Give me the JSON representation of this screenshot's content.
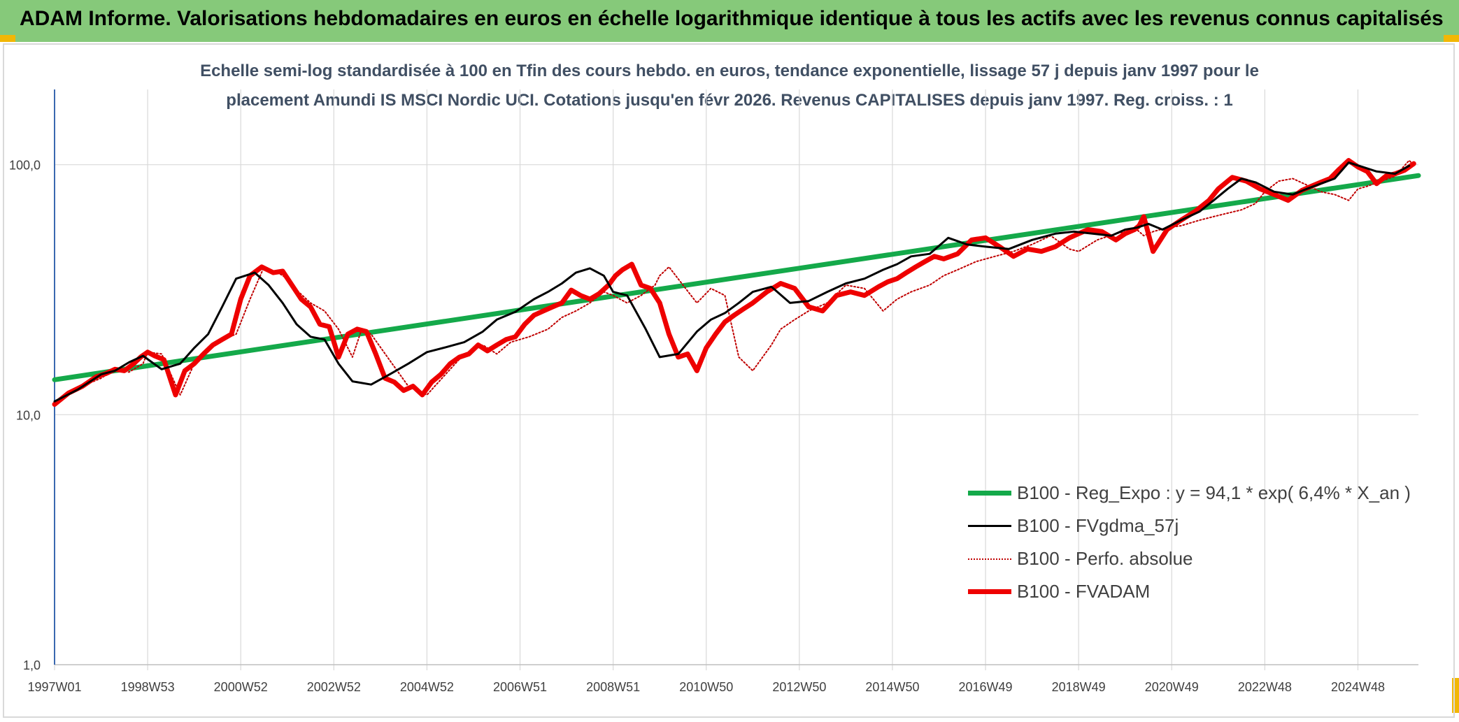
{
  "header": {
    "title": "ADAM Informe. Valorisations hebdomadaires en euros en échelle logarithmique identique à tous les actifs avec les revenus connus capitalisés"
  },
  "subtitle": {
    "line1": "Echelle semi-log standardisée à 100 en Tfin des cours hebdo. en euros, tendance exponentielle, lissage 57 j depuis janv 1997 pour le",
    "line2": "placement Amundi IS MSCI Nordic UCI. Cotations jusqu'en févr 2026. Revenus CAPITALISES depuis janv 1997. Reg. croiss. : 1"
  },
  "colors": {
    "header_bg": "#86c97a",
    "corner": "#f2b705",
    "reg": "#14a94a",
    "smooth": "#000000",
    "perfo": "#c00000",
    "fvadam": "#ee0000",
    "grid": "#d9d9d9",
    "axis": "#3a68b0"
  },
  "chart_data": {
    "type": "line",
    "yscale": "log",
    "ylim": [
      1,
      200
    ],
    "xlim": [
      1997.0,
      2026.3
    ],
    "y_ticks": [
      {
        "value": 1,
        "label": "1,0"
      },
      {
        "value": 10,
        "label": "10,0"
      },
      {
        "value": 100,
        "label": "100,0"
      }
    ],
    "x_ticks": [
      {
        "x": 1997.0,
        "label": "1997W01"
      },
      {
        "x": 1999.0,
        "label": "1998W53"
      },
      {
        "x": 2001.0,
        "label": "2000W52"
      },
      {
        "x": 2003.0,
        "label": "2002W52"
      },
      {
        "x": 2005.0,
        "label": "2004W52"
      },
      {
        "x": 2007.0,
        "label": "2006W51"
      },
      {
        "x": 2009.0,
        "label": "2008W51"
      },
      {
        "x": 2011.0,
        "label": "2010W50"
      },
      {
        "x": 2013.0,
        "label": "2012W50"
      },
      {
        "x": 2015.0,
        "label": "2014W50"
      },
      {
        "x": 2017.0,
        "label": "2016W49"
      },
      {
        "x": 2019.0,
        "label": "2018W49"
      },
      {
        "x": 2021.0,
        "label": "2020W49"
      },
      {
        "x": 2023.0,
        "label": "2022W48"
      },
      {
        "x": 2025.0,
        "label": "2024W48"
      }
    ],
    "grid": true,
    "legend_position": "bottom-right",
    "series": [
      {
        "name": "B100 - Reg_Expo : y = 94,1 * exp( 6,4% *  X_an )",
        "style": "line-thick",
        "color": "#14a94a",
        "x": [
          1997.0,
          2026.3
        ],
        "y": [
          13.8,
          90.5
        ]
      },
      {
        "name": "B100 - FVgdma_57j",
        "style": "line-thin",
        "color": "#000000",
        "x": [
          1997.0,
          1997.5,
          1998.0,
          1998.3,
          1998.6,
          1998.9,
          1999.3,
          1999.7,
          2000.0,
          2000.3,
          2000.6,
          2000.9,
          2001.3,
          2001.6,
          2001.9,
          2002.2,
          2002.5,
          2002.8,
          2003.1,
          2003.4,
          2003.8,
          2004.2,
          2004.6,
          2005.0,
          2005.4,
          2005.8,
          2006.2,
          2006.5,
          2006.9,
          2007.3,
          2007.6,
          2007.9,
          2008.2,
          2008.5,
          2008.8,
          2009.0,
          2009.3,
          2009.7,
          2010.0,
          2010.4,
          2010.8,
          2011.1,
          2011.4,
          2011.7,
          2012.0,
          2012.4,
          2012.8,
          2013.2,
          2013.6,
          2014.0,
          2014.4,
          2014.8,
          2015.1,
          2015.4,
          2015.8,
          2016.2,
          2016.6,
          2017.0,
          2017.5,
          2018.0,
          2018.5,
          2018.9,
          2019.3,
          2019.7,
          2020.0,
          2020.25,
          2020.5,
          2020.8,
          2021.2,
          2021.6,
          2021.9,
          2022.2,
          2022.5,
          2022.8,
          2023.2,
          2023.6,
          2023.9,
          2024.2,
          2024.5,
          2024.8,
          2025.1,
          2025.4,
          2025.8,
          2026.1
        ],
        "y": [
          11.3,
          12.6,
          14.5,
          15.0,
          16.2,
          17.2,
          15.2,
          16.0,
          18.5,
          21.0,
          27.0,
          35.0,
          37.0,
          33.0,
          28.0,
          23.0,
          20.5,
          20.0,
          16.0,
          13.6,
          13.2,
          14.5,
          16.0,
          17.8,
          18.6,
          19.5,
          21.5,
          24.0,
          25.8,
          29.0,
          31.0,
          33.5,
          37.0,
          38.5,
          36.0,
          31.0,
          30.0,
          22.0,
          17.0,
          17.5,
          21.5,
          24.0,
          25.5,
          28.0,
          31.0,
          32.5,
          28.0,
          28.5,
          31.0,
          33.5,
          35.0,
          38.0,
          40.0,
          43.0,
          44.0,
          51.0,
          48.0,
          47.0,
          46.0,
          50.0,
          53.0,
          54.0,
          53.0,
          52.0,
          55.0,
          56.0,
          58.0,
          55.0,
          60.0,
          65.0,
          72.0,
          80.0,
          88.0,
          85.0,
          78.0,
          76.0,
          80.0,
          84.0,
          88.0,
          102.0,
          98.0,
          94.0,
          92.0,
          99.0
        ]
      },
      {
        "name": "B100 - Perfo. absolue",
        "style": "dotted",
        "color": "#c00000",
        "x": [
          1997.0,
          1997.5,
          1998.0,
          1998.3,
          1998.6,
          1998.9,
          1999.0,
          1999.3,
          1999.7,
          2000.0,
          2000.3,
          2000.6,
          2000.9,
          2001.2,
          2001.5,
          2001.8,
          2002.0,
          2002.2,
          2002.5,
          2002.8,
          2003.1,
          2003.4,
          2003.6,
          2003.8,
          2004.2,
          2004.6,
          2005.0,
          2005.4,
          2005.8,
          2006.2,
          2006.5,
          2006.8,
          2007.2,
          2007.6,
          2007.9,
          2008.2,
          2008.5,
          2008.8,
          2009.0,
          2009.3,
          2009.6,
          2009.9,
          2010.0,
          2010.2,
          2010.5,
          2010.8,
          2011.1,
          2011.4,
          2011.7,
          2012.0,
          2012.4,
          2012.6,
          2012.9,
          2013.2,
          2013.6,
          2014.0,
          2014.4,
          2014.8,
          2015.1,
          2015.4,
          2015.8,
          2016.1,
          2016.4,
          2016.8,
          2017.2,
          2017.6,
          2018.0,
          2018.4,
          2018.8,
          2019.0,
          2019.4,
          2019.8,
          2020.0,
          2020.25,
          2020.4,
          2020.6,
          2020.9,
          2021.2,
          2021.6,
          2021.9,
          2022.2,
          2022.5,
          2022.8,
          2023.0,
          2023.3,
          2023.6,
          2023.9,
          2024.2,
          2024.5,
          2024.8,
          2025.0,
          2025.2,
          2025.5,
          2025.8,
          2026.1,
          2026.2
        ],
        "y": [
          11.0,
          12.8,
          14.0,
          15.2,
          14.8,
          16.0,
          17.8,
          17.5,
          12.0,
          16.0,
          18.5,
          20.0,
          21.0,
          29.0,
          39.0,
          37.0,
          35.0,
          31.5,
          28.0,
          26.0,
          22.0,
          17.0,
          22.0,
          21.0,
          16.5,
          13.0,
          12.0,
          14.5,
          17.5,
          19.0,
          17.5,
          19.5,
          20.5,
          22.0,
          24.5,
          26.0,
          28.0,
          31.0,
          30.0,
          28.0,
          30.0,
          33.0,
          36.0,
          39.0,
          33.0,
          28.0,
          32.0,
          30.0,
          17.0,
          15.0,
          19.0,
          22.0,
          24.0,
          26.0,
          28.0,
          33.0,
          32.0,
          26.0,
          29.0,
          31.0,
          33.0,
          36.0,
          38.0,
          41.0,
          43.0,
          45.0,
          48.0,
          52.0,
          46.0,
          45.0,
          50.0,
          53.0,
          54.0,
          55.0,
          52.0,
          54.0,
          56.0,
          57.0,
          60.0,
          62.0,
          64.0,
          66.0,
          70.0,
          78.0,
          86.0,
          88.0,
          83.0,
          78.0,
          76.0,
          72.0,
          80.0,
          82.0,
          86.0,
          90.0,
          104.0,
          100.0
        ]
      },
      {
        "name": "B100 - FVADAM",
        "style": "line-thick",
        "color": "#ee0000",
        "x": [
          1997.0,
          1997.3,
          1997.6,
          1997.9,
          1998.1,
          1998.3,
          1998.5,
          1998.7,
          1998.85,
          1999.0,
          1999.15,
          1999.35,
          1999.6,
          1999.8,
          2000.0,
          2000.2,
          2000.4,
          2000.6,
          2000.8,
          2001.0,
          2001.2,
          2001.45,
          2001.7,
          2001.9,
          2002.1,
          2002.3,
          2002.5,
          2002.7,
          2002.9,
          2003.1,
          2003.3,
          2003.5,
          2003.7,
          2003.9,
          2004.1,
          2004.3,
          2004.5,
          2004.7,
          2004.9,
          2005.1,
          2005.3,
          2005.5,
          2005.7,
          2005.9,
          2006.1,
          2006.3,
          2006.5,
          2006.7,
          2006.9,
          2007.1,
          2007.3,
          2007.5,
          2007.7,
          2007.9,
          2008.1,
          2008.3,
          2008.5,
          2008.7,
          2008.9,
          2009.05,
          2009.2,
          2009.4,
          2009.6,
          2009.8,
          2010.0,
          2010.2,
          2010.4,
          2010.6,
          2010.8,
          2011.0,
          2011.2,
          2011.4,
          2011.6,
          2011.8,
          2012.0,
          2012.3,
          2012.6,
          2012.9,
          2013.2,
          2013.5,
          2013.8,
          2014.1,
          2014.4,
          2014.7,
          2014.9,
          2015.1,
          2015.3,
          2015.5,
          2015.7,
          2015.9,
          2016.1,
          2016.4,
          2016.7,
          2017.0,
          2017.3,
          2017.6,
          2017.9,
          2018.2,
          2018.5,
          2018.8,
          2019.0,
          2019.2,
          2019.5,
          2019.8,
          2020.0,
          2020.2,
          2020.3,
          2020.4,
          2020.6,
          2020.9,
          2021.2,
          2021.5,
          2021.8,
          2022.0,
          2022.3,
          2022.6,
          2022.9,
          2023.2,
          2023.5,
          2023.8,
          2024.0,
          2024.2,
          2024.4,
          2024.6,
          2024.8,
          2025.0,
          2025.2,
          2025.4,
          2025.6,
          2025.8,
          2026.0,
          2026.2
        ],
        "y": [
          11.0,
          12.2,
          13.0,
          14.2,
          14.6,
          15.2,
          15.0,
          16.0,
          17.0,
          17.8,
          17.2,
          16.6,
          12.0,
          15.0,
          16.0,
          17.5,
          19.0,
          20.0,
          21.0,
          29.0,
          36.0,
          39.0,
          37.0,
          37.5,
          33.0,
          29.0,
          27.0,
          23.0,
          22.5,
          17.0,
          21.0,
          22.0,
          21.5,
          17.5,
          14.0,
          13.5,
          12.5,
          13.0,
          12.0,
          13.5,
          14.5,
          16.0,
          17.0,
          17.5,
          19.0,
          18.0,
          19.0,
          20.0,
          20.5,
          23.0,
          25.0,
          26.0,
          27.0,
          28.0,
          31.5,
          30.0,
          29.0,
          30.5,
          33.0,
          36.0,
          38.0,
          40.0,
          33.0,
          32.0,
          28.0,
          21.0,
          17.0,
          17.5,
          15.0,
          18.5,
          21.0,
          23.5,
          25.0,
          26.5,
          28.0,
          31.0,
          33.5,
          32.0,
          27.0,
          26.0,
          30.0,
          31.0,
          30.0,
          32.5,
          34.0,
          35.0,
          37.0,
          39.0,
          41.0,
          43.0,
          42.0,
          44.0,
          50.0,
          51.0,
          47.0,
          43.0,
          46.0,
          45.0,
          47.0,
          51.0,
          53.0,
          55.0,
          54.0,
          50.0,
          53.0,
          55.0,
          57.0,
          62.0,
          45.0,
          55.0,
          60.0,
          65.0,
          72.0,
          80.0,
          89.0,
          86.0,
          80.0,
          76.0,
          72.0,
          79.0,
          82.0,
          85.0,
          88.0,
          96.0,
          104.0,
          98.0,
          94.0,
          84.0,
          90.0,
          92.0,
          95.0,
          101.0
        ]
      }
    ]
  }
}
